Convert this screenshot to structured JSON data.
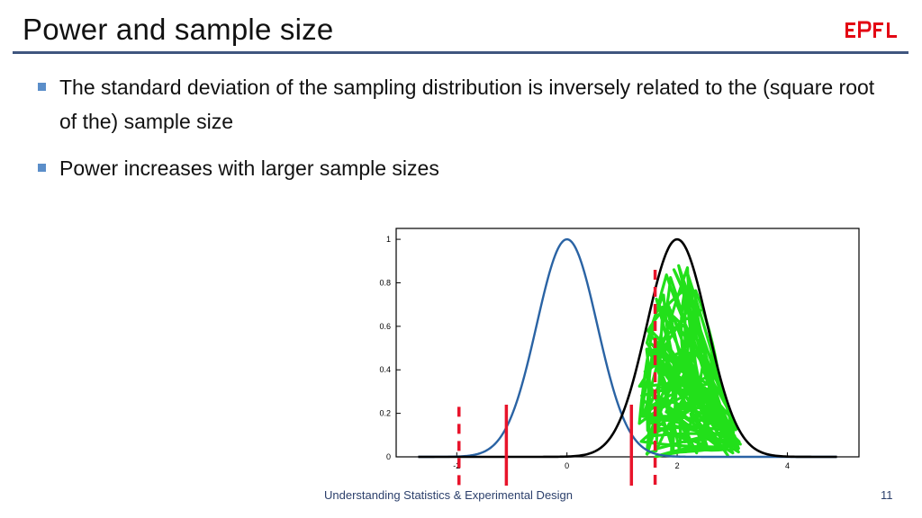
{
  "slide": {
    "title": "Power and sample size",
    "logo_text": "EPFL",
    "bullets": [
      "The standard deviation of the sampling distribution is inversely related to the (square root of the) sample size",
      "Power increases with larger sample sizes"
    ],
    "footer": "Understanding Statistics & Experimental Design",
    "page_number": "11"
  },
  "colors": {
    "title_rule": "#3f567f",
    "bullet_marker": "#5b8ec9",
    "null_curve": "#2a63a4",
    "alt_curve": "#000000",
    "critical_lines": "#e8142b",
    "power_scribble": "#22e01a",
    "logo": "#e30613"
  },
  "chart_data": {
    "type": "line",
    "x_ticks": [
      "-2",
      "0",
      "2",
      "4"
    ],
    "y_ticks": [
      "0",
      "0.2",
      "0.4",
      "0.6",
      "0.8",
      "1"
    ],
    "xlim": [
      -3.1,
      5.3
    ],
    "ylim": [
      0,
      1.05
    ],
    "series": [
      {
        "color": "#2a63a4",
        "mean": 0,
        "sd": 0.55
      },
      {
        "color": "#000000",
        "mean": 2,
        "sd": 0.55
      }
    ],
    "critical_values": [
      {
        "x": -1.96,
        "style": "dashed"
      },
      {
        "x": -1.1,
        "style": "solid"
      },
      {
        "x": 1.17,
        "style": "solid"
      },
      {
        "x": 1.6,
        "style": "dashed"
      }
    ],
    "shaded_region": {
      "from": 1.3,
      "to": 3.2
    }
  }
}
